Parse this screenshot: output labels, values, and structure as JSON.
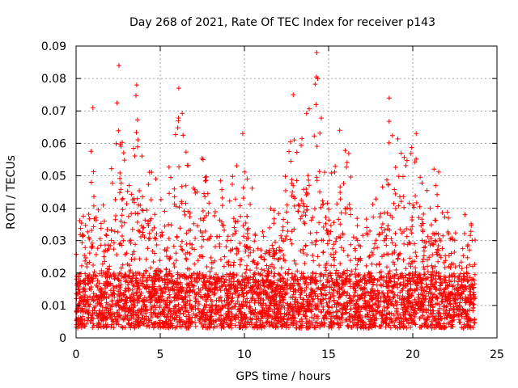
{
  "chart_data": {
    "type": "scatter",
    "title": "Day 268 of 2021, Rate Of TEC Index for receiver p143",
    "xlabel": "GPS time / hours",
    "ylabel": "ROTI / TECUs",
    "xlim": [
      0,
      25
    ],
    "ylim": [
      0,
      0.09
    ],
    "x_ticks": [
      0,
      5,
      10,
      15,
      20,
      25
    ],
    "x_tick_labels": [
      "0",
      "5",
      "10",
      "15",
      "20",
      "25"
    ],
    "y_ticks": [
      0,
      0.01,
      0.02,
      0.03,
      0.04,
      0.05,
      0.06,
      0.07,
      0.08,
      0.09
    ],
    "y_tick_labels": [
      "0",
      "0.01",
      "0.02",
      "0.03",
      "0.04",
      "0.05",
      "0.06",
      "0.07",
      "0.08",
      "0.09"
    ],
    "grid": true,
    "marker": "+",
    "marker_color": "#ff0000",
    "x_range_of_data": [
      0,
      23.7
    ],
    "baseline_band": [
      0.003,
      0.02
    ],
    "notable_points": [
      {
        "x": 2.55,
        "y": 0.084
      },
      {
        "x": 3.6,
        "y": 0.078
      },
      {
        "x": 6.1,
        "y": 0.077
      },
      {
        "x": 12.9,
        "y": 0.075
      },
      {
        "x": 14.3,
        "y": 0.088
      },
      {
        "x": 14.35,
        "y": 0.08
      },
      {
        "x": 18.6,
        "y": 0.074
      },
      {
        "x": 20.2,
        "y": 0.063
      },
      {
        "x": 9.9,
        "y": 0.063
      },
      {
        "x": 1.0,
        "y": 0.071
      }
    ],
    "envelope": [
      {
        "x": 0.0,
        "ymax": 0.035
      },
      {
        "x": 0.5,
        "ymax": 0.038
      },
      {
        "x": 1.0,
        "ymax": 0.07
      },
      {
        "x": 1.5,
        "ymax": 0.04
      },
      {
        "x": 2.0,
        "ymax": 0.045
      },
      {
        "x": 2.5,
        "ymax": 0.084
      },
      {
        "x": 3.0,
        "ymax": 0.047
      },
      {
        "x": 3.6,
        "ymax": 0.078
      },
      {
        "x": 4.2,
        "ymax": 0.055
      },
      {
        "x": 5.0,
        "ymax": 0.05
      },
      {
        "x": 5.5,
        "ymax": 0.057
      },
      {
        "x": 6.1,
        "ymax": 0.077
      },
      {
        "x": 7.0,
        "ymax": 0.048
      },
      {
        "x": 7.5,
        "ymax": 0.06
      },
      {
        "x": 8.0,
        "ymax": 0.05
      },
      {
        "x": 8.5,
        "ymax": 0.052
      },
      {
        "x": 9.0,
        "ymax": 0.045
      },
      {
        "x": 9.9,
        "ymax": 0.063
      },
      {
        "x": 10.5,
        "ymax": 0.045
      },
      {
        "x": 11.2,
        "ymax": 0.04
      },
      {
        "x": 12.0,
        "ymax": 0.04
      },
      {
        "x": 12.9,
        "ymax": 0.075
      },
      {
        "x": 13.4,
        "ymax": 0.062
      },
      {
        "x": 14.3,
        "ymax": 0.088
      },
      {
        "x": 15.0,
        "ymax": 0.045
      },
      {
        "x": 15.6,
        "ymax": 0.068
      },
      {
        "x": 16.2,
        "ymax": 0.06
      },
      {
        "x": 17.0,
        "ymax": 0.035
      },
      {
        "x": 17.8,
        "ymax": 0.045
      },
      {
        "x": 18.6,
        "ymax": 0.074
      },
      {
        "x": 19.3,
        "ymax": 0.058
      },
      {
        "x": 20.2,
        "ymax": 0.063
      },
      {
        "x": 20.8,
        "ymax": 0.045
      },
      {
        "x": 21.4,
        "ymax": 0.055
      },
      {
        "x": 22.0,
        "ymax": 0.04
      },
      {
        "x": 22.8,
        "ymax": 0.04
      },
      {
        "x": 23.7,
        "ymax": 0.035
      }
    ]
  }
}
